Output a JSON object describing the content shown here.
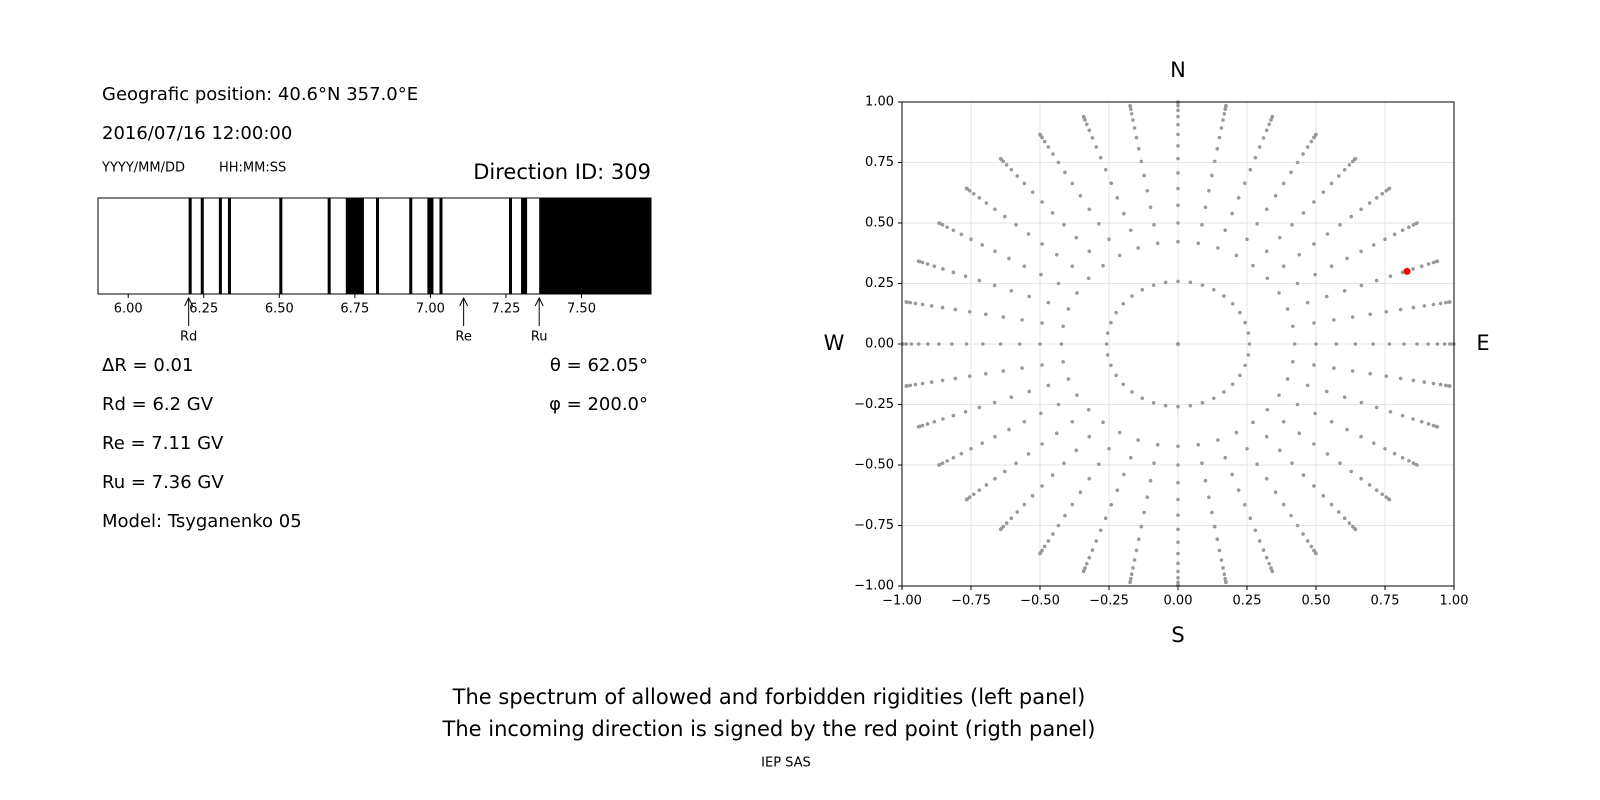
{
  "header": {
    "position": "Geografic position: 40.6°N 357.0°E",
    "datetime": "2016/07/16 12:00:00",
    "date_format": "YYYY/MM/DD",
    "time_format": "HH:MM:SS",
    "direction": "Direction ID: 309"
  },
  "chart_data": [
    {
      "type": "band",
      "xlim": [
        5.9,
        7.73
      ],
      "color": "#000000",
      "xticks": [
        {
          "value": 6,
          "label": "6.00"
        },
        {
          "value": 6.25,
          "label": "6.25"
        },
        {
          "value": 6.5,
          "label": "6.50"
        },
        {
          "value": 6.75,
          "label": "6.75"
        },
        {
          "value": 7,
          "label": "7.00"
        },
        {
          "value": 7.25,
          "label": "7.25"
        },
        {
          "value": 7.5,
          "label": "7.50"
        }
      ],
      "bands": [
        [
          6.2,
          6.21
        ],
        [
          6.24,
          6.25
        ],
        [
          6.3,
          6.31
        ],
        [
          6.33,
          6.34
        ],
        [
          6.5,
          6.51
        ],
        [
          6.66,
          6.67
        ],
        [
          6.72,
          6.78
        ],
        [
          6.82,
          6.83
        ],
        [
          6.93,
          6.94
        ],
        [
          6.99,
          7.01
        ],
        [
          7.03,
          7.04
        ],
        [
          7.26,
          7.27
        ],
        [
          7.3,
          7.32
        ],
        [
          7.36,
          7.73
        ]
      ],
      "markers": [
        {
          "label": "Rd",
          "value": 6.2
        },
        {
          "label": "Re",
          "value": 7.11
        },
        {
          "label": "Ru",
          "value": 7.36
        }
      ]
    },
    {
      "type": "sky",
      "xlim": [
        -1,
        1
      ],
      "ylim": [
        -1,
        1
      ],
      "grid": true,
      "color": "#999999",
      "xticks": [
        {
          "value": -1,
          "label": "−1.00"
        },
        {
          "value": -0.75,
          "label": "−0.75"
        },
        {
          "value": -0.5,
          "label": "−0.50"
        },
        {
          "value": -0.25,
          "label": "−0.25"
        },
        {
          "value": 0,
          "label": "0.00"
        },
        {
          "value": 0.25,
          "label": "0.25"
        },
        {
          "value": 0.5,
          "label": "0.50"
        },
        {
          "value": 0.75,
          "label": "0.75"
        },
        {
          "value": 1,
          "label": "1.00"
        }
      ],
      "yticks": [
        {
          "value": -1,
          "label": "−1.00"
        },
        {
          "value": -0.75,
          "label": "−0.75"
        },
        {
          "value": -0.5,
          "label": "−0.50"
        },
        {
          "value": -0.25,
          "label": "−0.25"
        },
        {
          "value": 0,
          "label": "0.00"
        },
        {
          "value": 0.25,
          "label": "0.25"
        },
        {
          "value": 0.5,
          "label": "0.50"
        },
        {
          "value": 0.75,
          "label": "0.75"
        },
        {
          "value": 1,
          "label": "1.00"
        }
      ],
      "compass": [
        "N",
        "E",
        "S",
        "W"
      ],
      "zenith_angles": [
        0,
        15,
        25,
        30,
        35,
        40,
        45,
        50,
        55,
        60,
        65,
        70,
        75,
        80,
        85,
        90
      ],
      "azimuths": [
        0,
        10,
        20,
        30,
        40,
        50,
        60,
        70,
        80,
        90,
        100,
        110,
        120,
        130,
        140,
        150,
        160,
        170,
        180,
        190,
        200,
        210,
        220,
        230,
        240,
        250,
        260,
        270,
        280,
        290,
        300,
        310,
        320,
        330,
        340,
        350
      ],
      "highlight": {
        "x": 0.83,
        "y": 0.3,
        "color": "#ff0000"
      }
    }
  ],
  "info": {
    "left": [
      "ΔR = 0.01",
      "Rd = 6.2 GV",
      "Re = 7.11 GV",
      "Ru = 7.36 GV",
      "Model: Tsyganenko 05"
    ],
    "right": [
      "θ = 62.05°",
      "φ = 200.0°"
    ]
  },
  "caption": [
    "The spectrum of allowed and forbidden rigidities (left panel)",
    "The incoming direction is signed by the red point (rigth panel)"
  ],
  "footer": "IEP SAS"
}
